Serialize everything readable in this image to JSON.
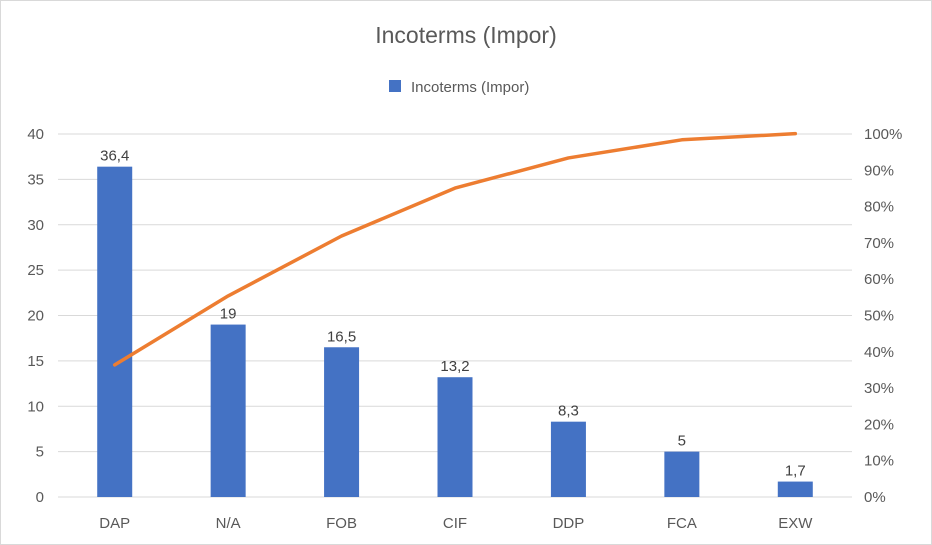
{
  "chart_data": {
    "type": "bar",
    "title": "Incoterms (Impor)",
    "categories": [
      "DAP",
      "N/A",
      "FOB",
      "CIF",
      "DDP",
      "FCA",
      "EXW"
    ],
    "series": [
      {
        "name": "Incoterms (Impor)",
        "type": "bar",
        "axis": "left",
        "color": "#4472C4",
        "values": [
          36.4,
          19,
          16.5,
          13.2,
          8.3,
          5,
          1.7
        ],
        "labels": [
          "36,4",
          "19",
          "16,5",
          "13,2",
          "8,3",
          "5",
          "1,7"
        ]
      },
      {
        "type": "line",
        "axis": "right",
        "color": "#ED7D31",
        "values": [
          36.4,
          55.4,
          71.9,
          85.1,
          93.4,
          98.4,
          100.1
        ]
      }
    ],
    "y_left": {
      "min": 0,
      "max": 40,
      "ticks": [
        0,
        5,
        10,
        15,
        20,
        25,
        30,
        35,
        40
      ],
      "tick_labels": [
        "0",
        "5",
        "10",
        "15",
        "20",
        "25",
        "30",
        "35",
        "40"
      ]
    },
    "y_right": {
      "min": 0,
      "max": 100,
      "ticks": [
        0,
        10,
        20,
        30,
        40,
        50,
        60,
        70,
        80,
        90,
        100
      ],
      "tick_labels": [
        "0%",
        "10%",
        "20%",
        "30%",
        "40%",
        "50%",
        "60%",
        "70%",
        "80%",
        "90%",
        "100%"
      ]
    },
    "grid": true,
    "legend_position": "top"
  }
}
